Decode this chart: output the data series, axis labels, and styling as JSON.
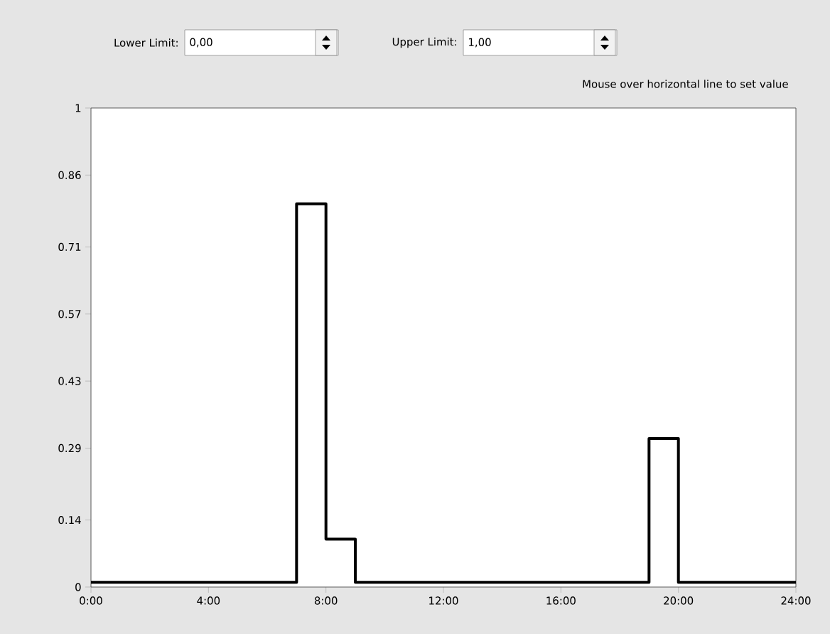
{
  "chart_data": {
    "type": "step",
    "x": [
      0,
      7,
      8,
      9,
      19,
      20,
      24
    ],
    "values": [
      0.01,
      0.8,
      0.1,
      0.01,
      0.31,
      0.01,
      0.01
    ],
    "color": "#000000",
    "xlim": [
      0,
      24
    ],
    "xticks": [
      {
        "value": 0,
        "label": "0:00"
      },
      {
        "value": 4,
        "label": "4:00"
      },
      {
        "value": 8,
        "label": "8:00"
      },
      {
        "value": 12,
        "label": "12:00"
      },
      {
        "value": 16,
        "label": "16:00"
      },
      {
        "value": 20,
        "label": "20:00"
      },
      {
        "value": 24,
        "label": "24:00"
      }
    ],
    "ylim": [
      0,
      1
    ],
    "yticks": [
      0,
      0.14,
      0.29,
      0.43,
      0.57,
      0.71,
      0.86,
      1
    ],
    "annotations": [
      "Lower Limit:",
      "0,00",
      "Upper Limit:",
      "1,00",
      "Mouse over horizontal line to set value"
    ]
  }
}
